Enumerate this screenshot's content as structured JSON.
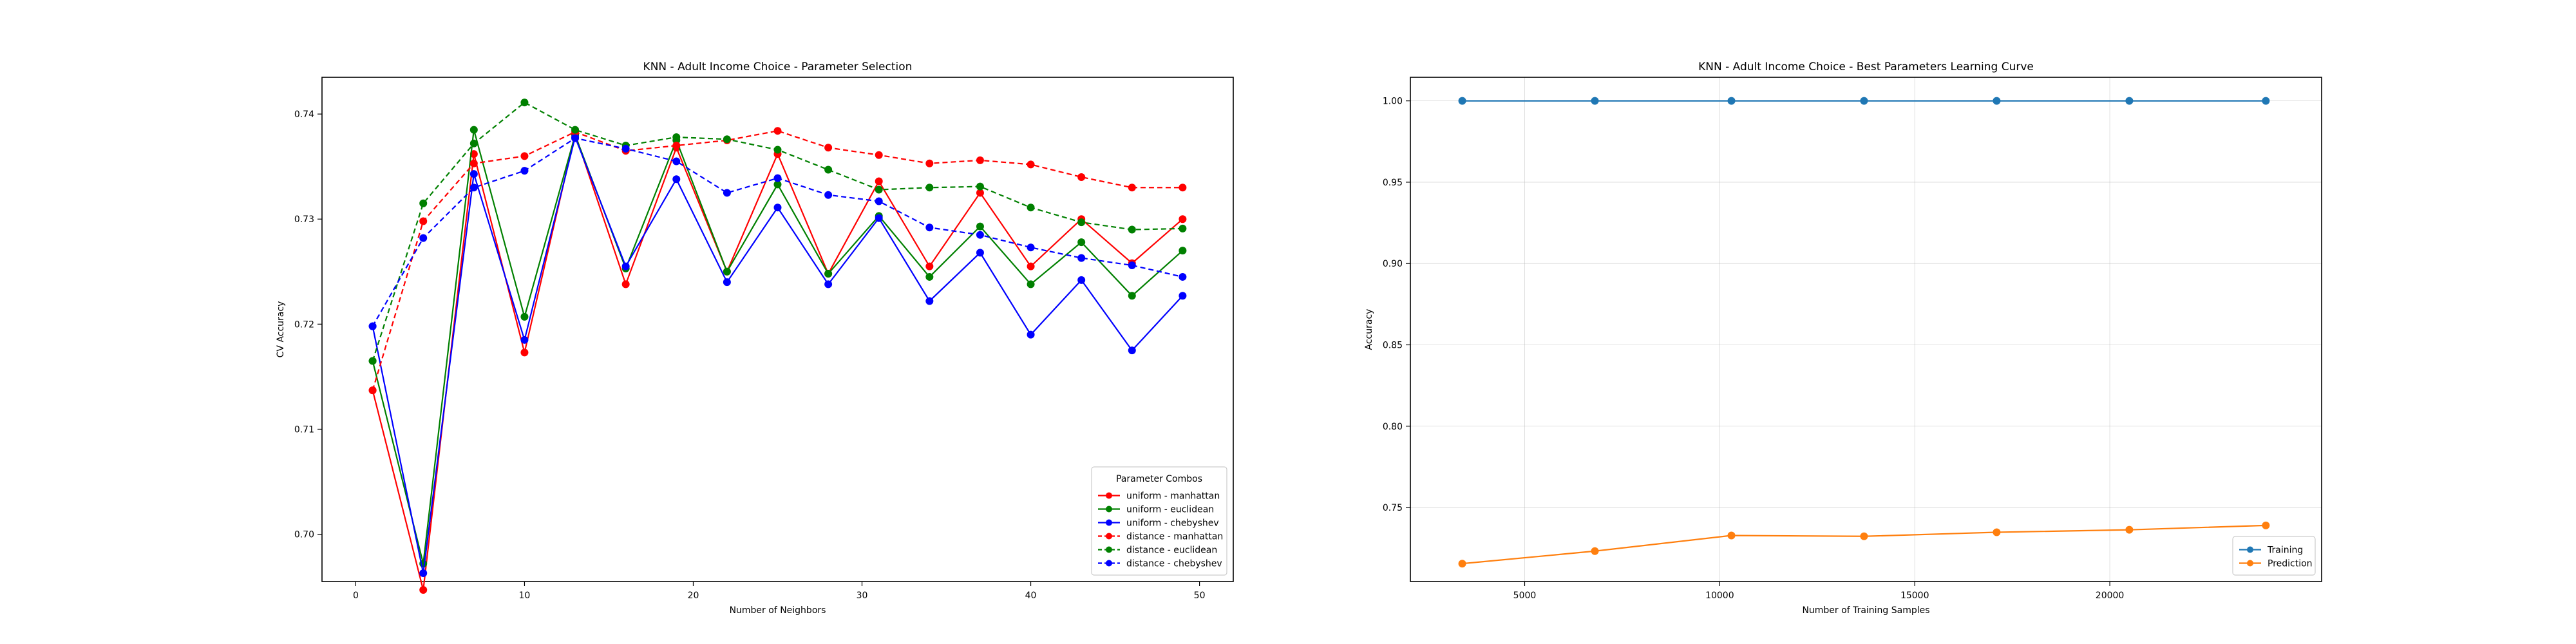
{
  "chart_data": [
    {
      "type": "line",
      "title": "KNN - Adult Income Choice - Parameter Selection",
      "xlabel": "Number of Neighbors",
      "ylabel": "CV Accuracy",
      "xlim": [
        -2,
        52
      ],
      "ylim": [
        0.6955,
        0.7435
      ],
      "xticks": [
        0,
        10,
        20,
        30,
        40,
        50
      ],
      "yticks": [
        0.7,
        0.71,
        0.72,
        0.73,
        0.74
      ],
      "grid": false,
      "legend": {
        "title": "Parameter Combos",
        "placement": "lower right"
      },
      "x": [
        1,
        4,
        7,
        10,
        13,
        16,
        19,
        22,
        25,
        28,
        31,
        34,
        37,
        40,
        43,
        46,
        49
      ],
      "series": [
        {
          "name": "uniform - manhattan",
          "color": "#ff0000",
          "style": "solid",
          "values": [
            0.7137,
            0.6947,
            0.7362,
            0.7173,
            0.7381,
            0.7238,
            0.7368,
            0.725,
            0.7362,
            0.7248,
            0.7336,
            0.7255,
            0.7325,
            0.7255,
            0.73,
            0.7258,
            0.73
          ]
        },
        {
          "name": "uniform - euclidean",
          "color": "#008000",
          "style": "solid",
          "values": [
            0.7165,
            0.6972,
            0.7385,
            0.7207,
            0.738,
            0.7253,
            0.7375,
            0.725,
            0.7333,
            0.7248,
            0.7303,
            0.7245,
            0.7293,
            0.7238,
            0.7278,
            0.7227,
            0.727
          ]
        },
        {
          "name": "uniform - chebyshev",
          "color": "#0000ff",
          "style": "solid",
          "values": [
            0.7198,
            0.6963,
            0.7343,
            0.7185,
            0.7378,
            0.7255,
            0.7338,
            0.724,
            0.7311,
            0.7238,
            0.7301,
            0.7222,
            0.7268,
            0.719,
            0.7242,
            0.7175,
            0.7227
          ]
        },
        {
          "name": "distance - manhattan",
          "color": "#ff0000",
          "style": "dashed",
          "values": [
            0.7137,
            0.7298,
            0.7353,
            0.736,
            0.7383,
            0.7365,
            0.737,
            0.7375,
            0.7384,
            0.7368,
            0.7361,
            0.7353,
            0.7356,
            0.7352,
            0.734,
            0.733,
            0.733
          ]
        },
        {
          "name": "distance - euclidean",
          "color": "#008000",
          "style": "dashed",
          "values": [
            0.7165,
            0.7315,
            0.7372,
            0.7411,
            0.7385,
            0.737,
            0.7378,
            0.7376,
            0.7366,
            0.7347,
            0.7328,
            0.733,
            0.7331,
            0.7311,
            0.7297,
            0.729,
            0.7291
          ]
        },
        {
          "name": "distance - chebyshev",
          "color": "#0000ff",
          "style": "dashed",
          "values": [
            0.7198,
            0.7282,
            0.733,
            0.7346,
            0.7377,
            0.7367,
            0.7355,
            0.7325,
            0.7339,
            0.7323,
            0.7317,
            0.7292,
            0.7285,
            0.7273,
            0.7263,
            0.7256,
            0.7245
          ]
        }
      ]
    },
    {
      "type": "line",
      "title": "KNN - Adult Income Choice -  Best Parameters Learning Curve",
      "xlabel": "Number of Training Samples",
      "ylabel": "Accuracy",
      "xlim": [
        2070,
        25430
      ],
      "ylim": [
        0.7045,
        1.0145
      ],
      "xticks": [
        5000,
        10000,
        15000,
        20000
      ],
      "yticks": [
        0.75,
        0.8,
        0.85,
        0.9,
        0.95,
        1.0
      ],
      "grid": true,
      "legend": {
        "placement": "lower right"
      },
      "x": [
        3400,
        6800,
        10300,
        13700,
        17100,
        20500,
        24000
      ],
      "series": [
        {
          "name": "Training",
          "color": "#1f77b4",
          "style": "solid",
          "values": [
            1.0,
            1.0,
            1.0,
            1.0,
            1.0,
            1.0,
            1.0
          ]
        },
        {
          "name": "Prediction",
          "color": "#ff7f0e",
          "style": "solid",
          "values": [
            0.7155,
            0.7232,
            0.7328,
            0.7323,
            0.7348,
            0.7363,
            0.739
          ]
        }
      ]
    }
  ]
}
